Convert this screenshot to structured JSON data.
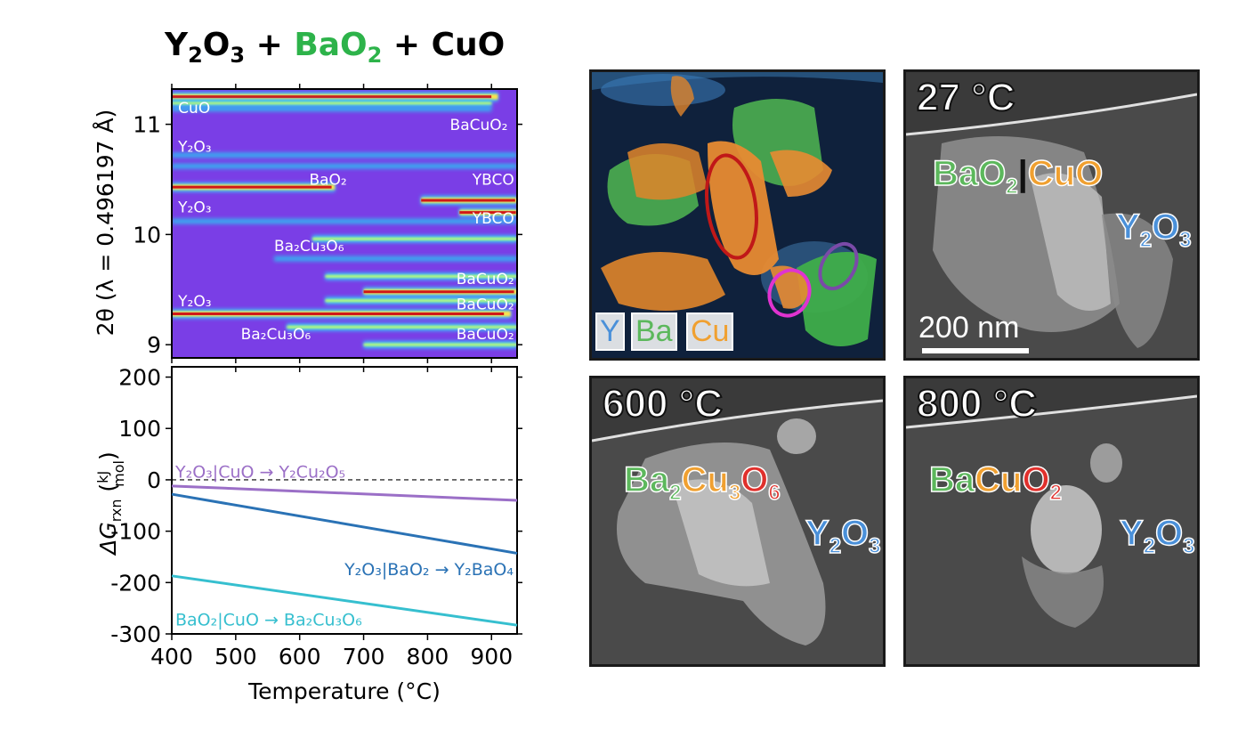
{
  "figure": {
    "title": {
      "part1": "Y",
      "sub1": "2",
      "part2": "O",
      "sub2": "3",
      "part3": " + ",
      "part4": "BaO",
      "sub4": "2",
      "part5": " + CuO"
    },
    "colors": {
      "baO2_green": "#2db34a",
      "y_blue": "#4a90d9",
      "ba_green": "#5cb85c",
      "cu_orange": "#f0a030",
      "o_red": "#e0302c"
    }
  },
  "chart_data": [
    {
      "type": "heatmap",
      "ylabel": "2θ (λ = 0.496197 Å)",
      "xlabel": "",
      "xlim": [
        400,
        940
      ],
      "ylim": [
        8.88,
        11.32
      ],
      "yticks": [
        "9",
        "10",
        "11"
      ],
      "phase_labels": [
        {
          "text": "CuO",
          "x": 410,
          "y": 11.1
        },
        {
          "text": "BaCuO₂",
          "x": 835,
          "y": 10.95
        },
        {
          "text": "Y₂O₃",
          "x": 410,
          "y": 10.75
        },
        {
          "text": "BaO₂",
          "x": 615,
          "y": 10.45
        },
        {
          "text": "YBCO",
          "x": 870,
          "y": 10.45
        },
        {
          "text": "Y₂O₃",
          "x": 410,
          "y": 10.2
        },
        {
          "text": "YBCO",
          "x": 870,
          "y": 10.1
        },
        {
          "text": "Ba₂Cu₃O₆",
          "x": 560,
          "y": 9.85
        },
        {
          "text": "BaCuO₂",
          "x": 845,
          "y": 9.55
        },
        {
          "text": "Y₂O₃",
          "x": 410,
          "y": 9.35
        },
        {
          "text": "BaCuO₂",
          "x": 845,
          "y": 9.32
        },
        {
          "text": "Ba₂Cu₃O₆",
          "x": 508,
          "y": 9.05
        },
        {
          "text": "BaCuO₂",
          "x": 845,
          "y": 9.05
        }
      ],
      "bands": [
        {
          "y": 11.25,
          "x0": 400,
          "x1": 910,
          "intensity": "high"
        },
        {
          "y": 11.19,
          "x0": 400,
          "x1": 900,
          "intensity": "medium"
        },
        {
          "y": 11.14,
          "x0": 400,
          "x1": 900,
          "intensity": "low"
        },
        {
          "y": 10.72,
          "x0": 400,
          "x1": 940,
          "intensity": "low"
        },
        {
          "y": 10.62,
          "x0": 400,
          "x1": 940,
          "intensity": "low"
        },
        {
          "y": 10.43,
          "x0": 400,
          "x1": 655,
          "intensity": "high"
        },
        {
          "y": 10.31,
          "x0": 790,
          "x1": 940,
          "intensity": "high"
        },
        {
          "y": 10.2,
          "x0": 850,
          "x1": 940,
          "intensity": "high"
        },
        {
          "y": 10.12,
          "x0": 400,
          "x1": 940,
          "intensity": "low"
        },
        {
          "y": 9.96,
          "x0": 620,
          "x1": 940,
          "intensity": "medium"
        },
        {
          "y": 9.78,
          "x0": 560,
          "x1": 940,
          "intensity": "low"
        },
        {
          "y": 9.62,
          "x0": 640,
          "x1": 940,
          "intensity": "medium"
        },
        {
          "y": 9.48,
          "x0": 700,
          "x1": 940,
          "intensity": "high"
        },
        {
          "y": 9.4,
          "x0": 640,
          "x1": 940,
          "intensity": "medium"
        },
        {
          "y": 9.28,
          "x0": 400,
          "x1": 930,
          "intensity": "high"
        },
        {
          "y": 9.16,
          "x0": 580,
          "x1": 940,
          "intensity": "medium"
        },
        {
          "y": 9.0,
          "x0": 700,
          "x1": 940,
          "intensity": "medium"
        }
      ]
    },
    {
      "type": "line",
      "xlabel": "Temperature (°C)",
      "ylabel": "ΔG_rxn (kJ/mol)",
      "xlim": [
        400,
        940
      ],
      "ylim": [
        -300,
        220
      ],
      "xticks": [
        "400",
        "500",
        "600",
        "700",
        "800",
        "900"
      ],
      "yticks": [
        "200",
        "100",
        "0",
        "-100",
        "-200",
        "-300"
      ],
      "reference_line": {
        "y": 0,
        "style": "dashed"
      },
      "series": [
        {
          "name": "Y₂O₃|CuO → Y₂Cu₂O₅",
          "color": "#9b6fc7",
          "x": [
            400,
            940
          ],
          "y": [
            -12,
            -40
          ]
        },
        {
          "name": "Y₂O₃|BaO₂ → Y₂BaO₄",
          "color": "#2a72b5",
          "x": [
            400,
            940
          ],
          "y": [
            -28,
            -143
          ]
        },
        {
          "name": "BaO₂|CuO → Ba₂Cu₃O₆",
          "color": "#36bfcf",
          "x": [
            400,
            940
          ],
          "y": [
            -187,
            -283
          ]
        }
      ]
    }
  ],
  "images": {
    "eds": {
      "legend": [
        "Y",
        "Ba",
        "Cu"
      ]
    },
    "sem_27": {
      "temp": "27 °C",
      "label_a": "BaO",
      "label_a_sub": "2",
      "sep": "|",
      "label_b": "CuO",
      "label_c": "Y",
      "label_c_sub1": "2",
      "label_c_mid": "O",
      "label_c_sub2": "3",
      "scale": "200 nm"
    },
    "sem_600": {
      "temp": "600 °C",
      "ba": "Ba",
      "ba_sub": "2",
      "cu": "Cu",
      "cu_sub": "3",
      "o": "O",
      "o_sub": "6",
      "y": "Y",
      "y_sub": "2",
      "yo": "O",
      "yo_sub": "3"
    },
    "sem_800": {
      "temp": "800 °C",
      "ba": "Ba",
      "cu": "Cu",
      "o": "O",
      "o_sub": "2",
      "y": "Y",
      "y_sub": "2",
      "yo": "O",
      "yo_sub": "3"
    }
  }
}
